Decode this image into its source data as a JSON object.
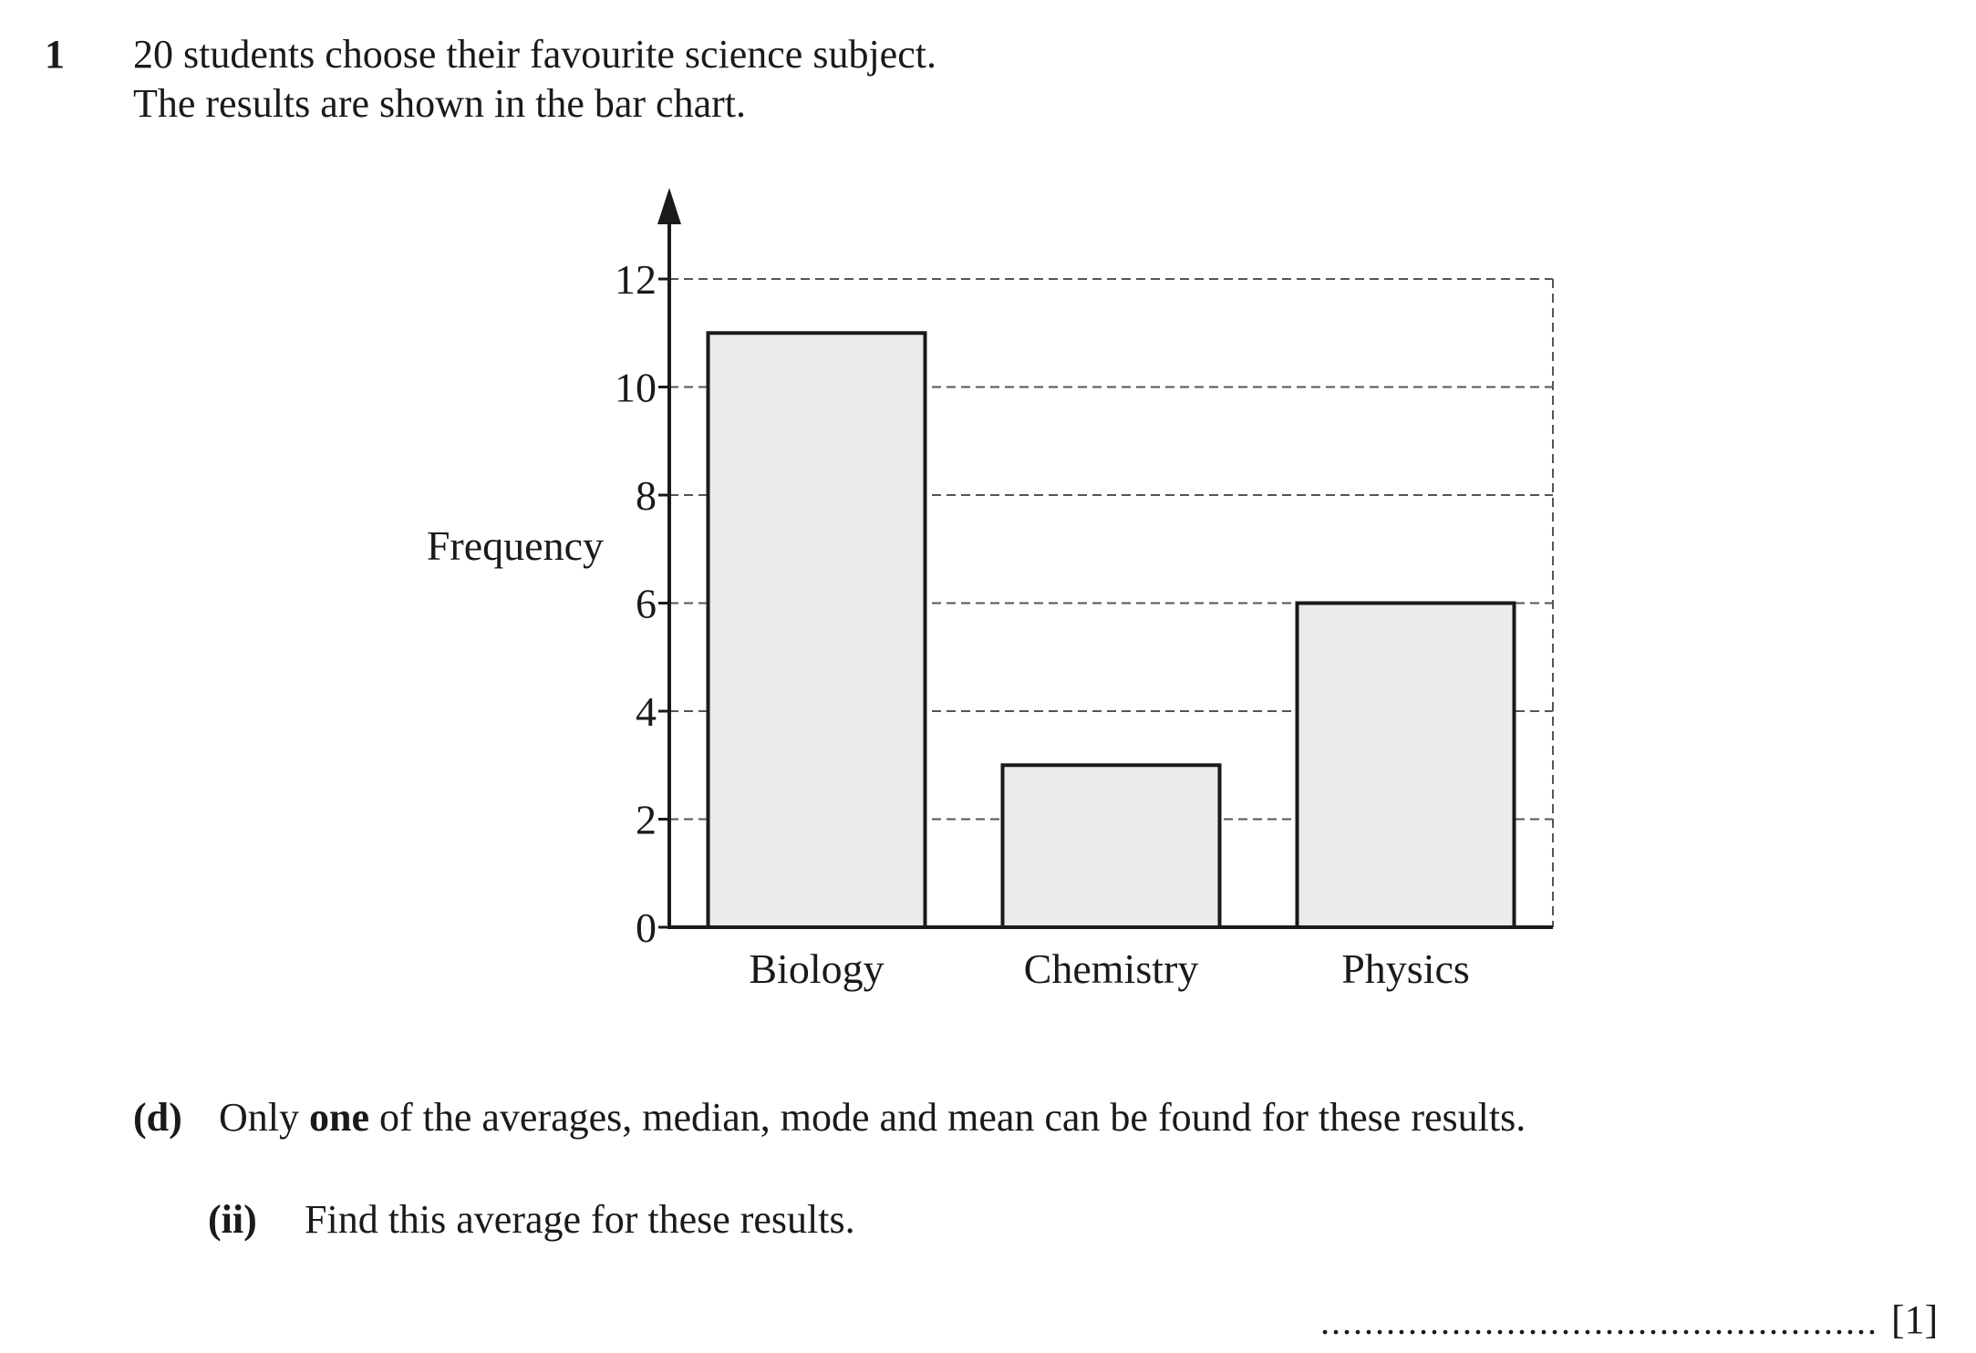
{
  "question": {
    "number": "1",
    "line1": "20 students choose their favourite science subject.",
    "line2": "The results are shown in the bar chart."
  },
  "chart_data": {
    "type": "bar",
    "title": "",
    "xlabel": "",
    "ylabel": "Frequency",
    "categories": [
      "Biology",
      "Chemistry",
      "Physics"
    ],
    "values": [
      11,
      3,
      6
    ],
    "ylim": [
      0,
      12
    ],
    "yticks": [
      "0",
      "2",
      "4",
      "6",
      "8",
      "10",
      "12"
    ],
    "grid": true,
    "colors": {
      "bar_fill": "#ebebeb",
      "bar_stroke": "#1a1a1a",
      "grid": "#555555"
    }
  },
  "part_d": {
    "label": "(d)",
    "text_before": "Only ",
    "emphasis": "one",
    "text_after": " of the averages, median, mode and mean can be found for these results."
  },
  "part_ii": {
    "label": "(ii)",
    "text": "Find this average for these results."
  },
  "answer": {
    "dots": "...................................................",
    "marks": "[1]"
  }
}
